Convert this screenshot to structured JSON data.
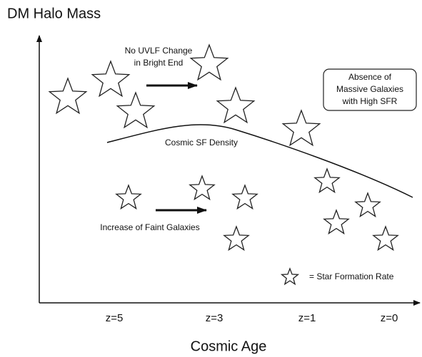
{
  "diagram": {
    "y_axis_label": "DM Halo Mass",
    "x_axis_label": "Cosmic Age",
    "x_ticks": [
      "z=5",
      "z=3",
      "z=1",
      "z=0"
    ],
    "annotations": {
      "bright_end": [
        "No UVLF Change",
        "in Bright End"
      ],
      "curve": "Cosmic SF Density",
      "faint": "Increase of Faint Galaxies",
      "box": [
        "Absence of",
        "Massive Galaxies",
        "with High SFR"
      ],
      "legend": "= Star Formation Rate"
    }
  }
}
